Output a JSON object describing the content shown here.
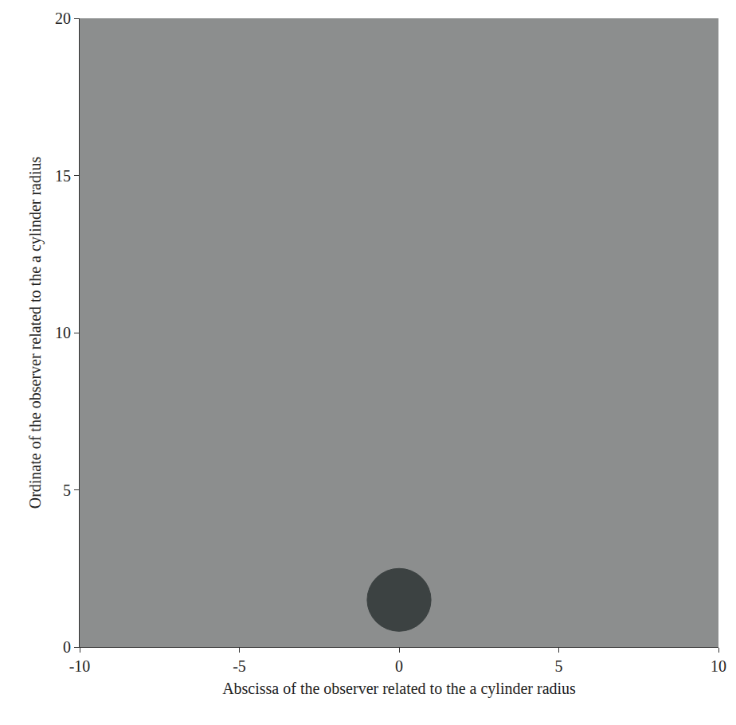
{
  "chart_data": {
    "type": "scatter",
    "x_label": "Abscissa of the observer related to the a cylinder radius",
    "y_label": "Ordinate of the observer related to the a cylinder radius",
    "xlim": [
      -10,
      10
    ],
    "ylim": [
      0,
      20
    ],
    "xticks": [
      -10,
      -5,
      0,
      5,
      10
    ],
    "yticks": [
      0,
      5,
      10,
      15,
      20
    ],
    "grid": false,
    "shapes": [
      {
        "x": 0,
        "y": 1.5,
        "r": 1,
        "color": "#3c4242"
      }
    ]
  }
}
